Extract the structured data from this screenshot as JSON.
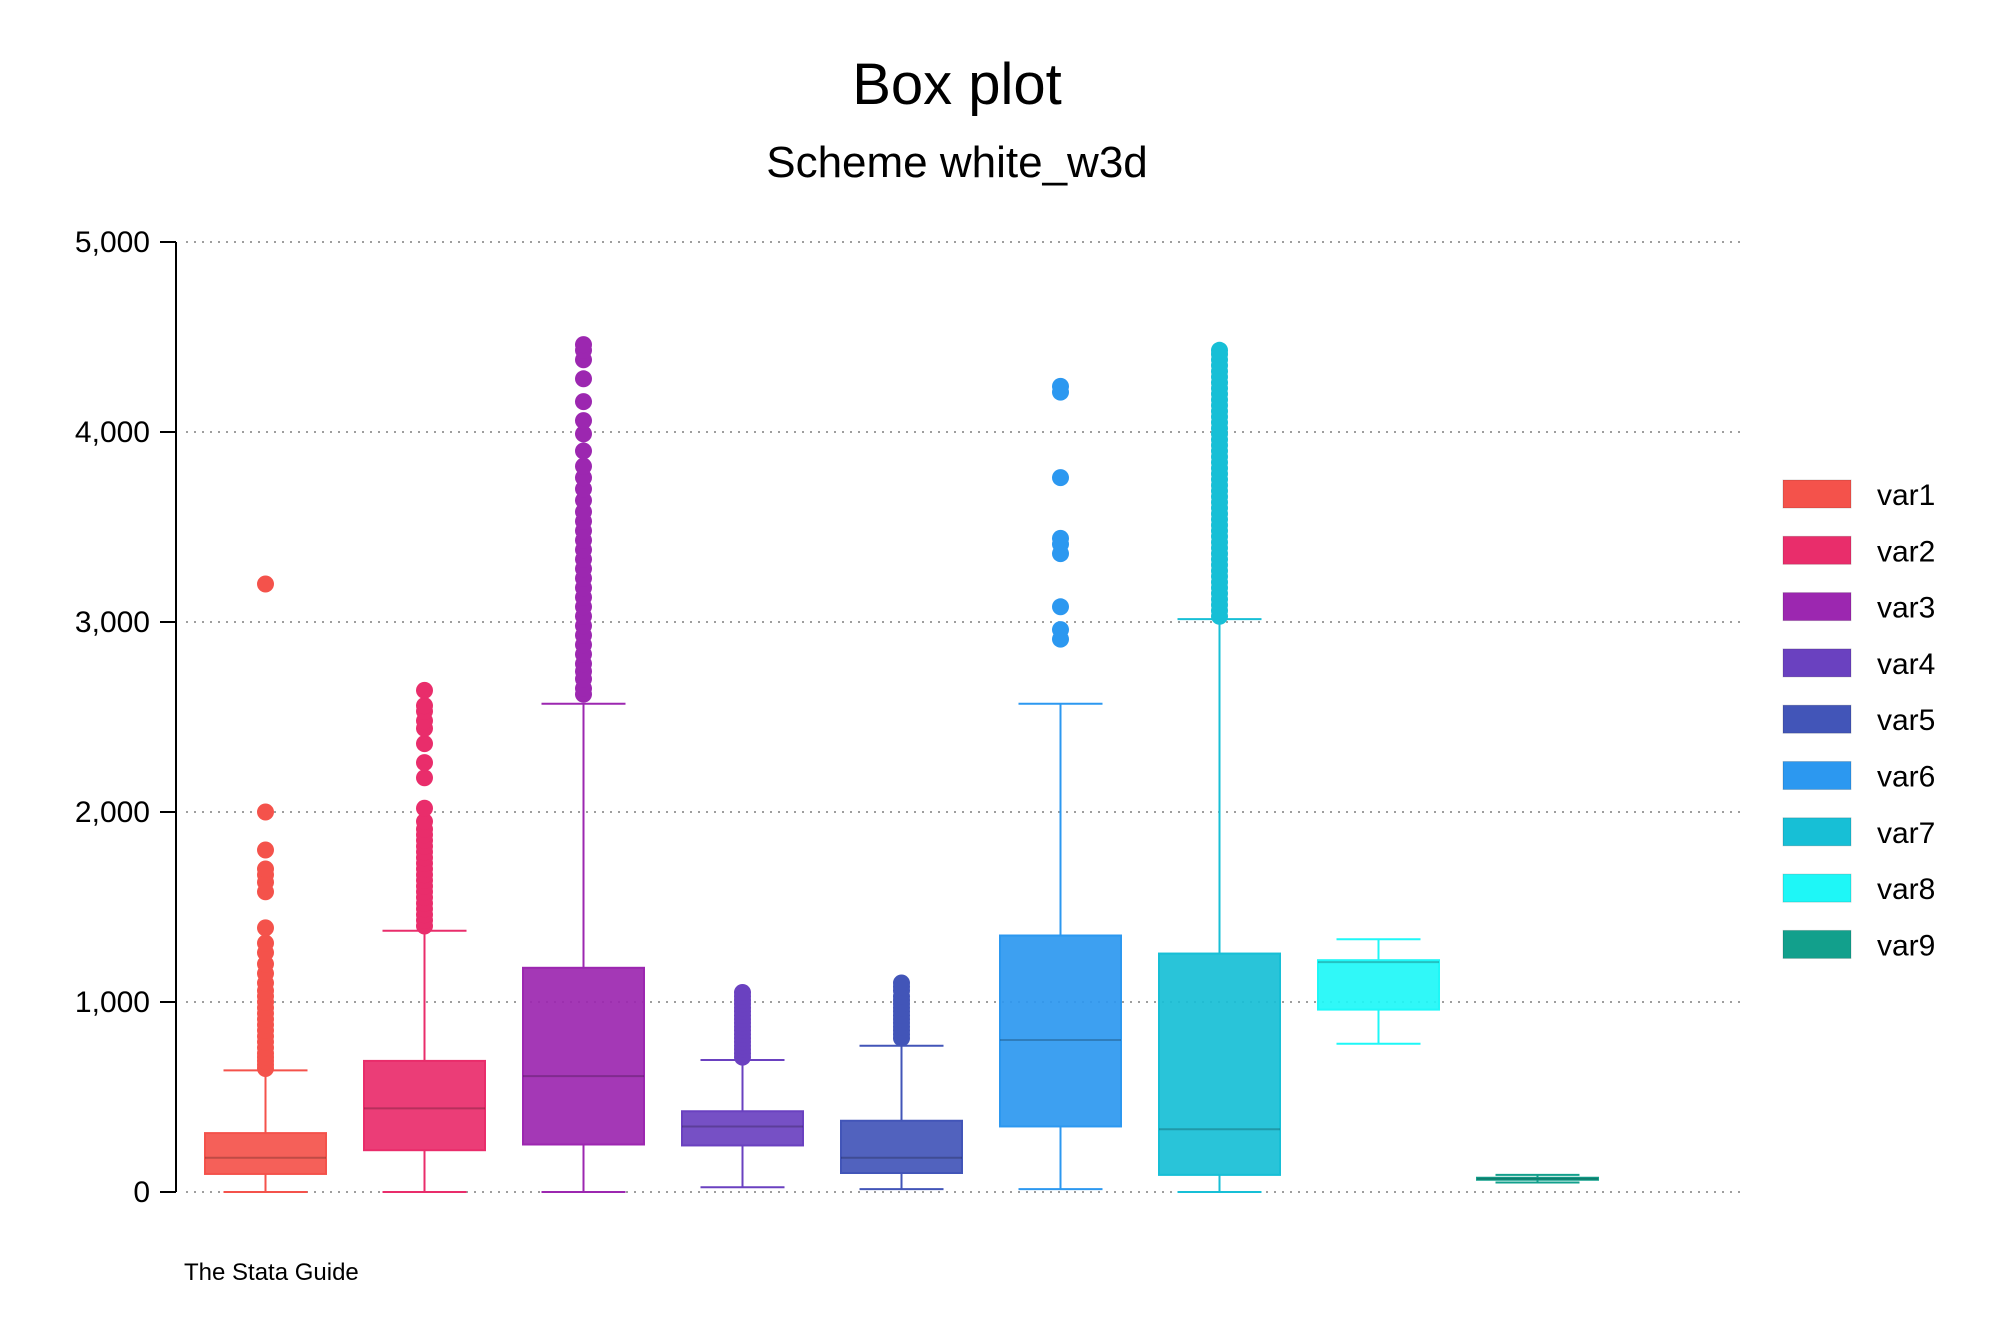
{
  "chart_data": {
    "type": "box",
    "title": "Box plot",
    "subtitle": "Scheme white_w3d",
    "note": "The Stata Guide",
    "xlabel": "",
    "ylabel": "",
    "ylim": [
      0,
      5000
    ],
    "yticks": [
      0,
      1000,
      2000,
      3000,
      4000,
      5000
    ],
    "ytick_labels": [
      "0",
      "1,000",
      "2,000",
      "3,000",
      "4,000",
      "5,000"
    ],
    "grid": true,
    "legend_position": "right",
    "series": [
      {
        "name": "var1",
        "color": "#f4524b",
        "whisker_low": 0,
        "q1": 95,
        "median": 180,
        "q3": 310,
        "whisker_high": 640,
        "outliers": [
          650,
          670,
          690,
          710,
          730,
          760,
          790,
          820,
          850,
          880,
          910,
          940,
          970,
          1000,
          1030,
          1060,
          1100,
          1150,
          1200,
          1260,
          1310,
          1390,
          1580,
          1630,
          1670,
          1700,
          1800,
          2000,
          3200
        ]
      },
      {
        "name": "var2",
        "color": "#e92d6b",
        "whisker_low": 0,
        "q1": 220,
        "median": 440,
        "q3": 690,
        "whisker_high": 1375,
        "outliers": [
          1400,
          1430,
          1460,
          1490,
          1520,
          1550,
          1580,
          1610,
          1640,
          1670,
          1700,
          1730,
          1760,
          1790,
          1820,
          1850,
          1880,
          1910,
          1950,
          2020,
          2180,
          2260,
          2360,
          2440,
          2480,
          2530,
          2560,
          2640
        ]
      },
      {
        "name": "var3",
        "color": "#9c27b0",
        "whisker_low": 0,
        "q1": 250,
        "median": 610,
        "q3": 1180,
        "whisker_high": 2570,
        "outliers": [
          2620,
          2650,
          2700,
          2740,
          2780,
          2830,
          2880,
          2930,
          2980,
          3030,
          3080,
          3130,
          3180,
          3230,
          3280,
          3330,
          3380,
          3430,
          3480,
          3530,
          3580,
          3640,
          3700,
          3760,
          3820,
          3900,
          3990,
          4060,
          4160,
          4280,
          4380,
          4430,
          4460
        ]
      },
      {
        "name": "var4",
        "color": "#6a41c0",
        "whisker_low": 25,
        "q1": 245,
        "median": 345,
        "q3": 425,
        "whisker_high": 695,
        "outliers": [
          710,
          730,
          750,
          770,
          790,
          810,
          830,
          850,
          870,
          890,
          910,
          930,
          950,
          970,
          990,
          1010,
          1030,
          1050
        ]
      },
      {
        "name": "var5",
        "color": "#4255b8",
        "whisker_low": 15,
        "q1": 100,
        "median": 180,
        "q3": 375,
        "whisker_high": 770,
        "outliers": [
          810,
          830,
          850,
          870,
          890,
          910,
          930,
          950,
          970,
          990,
          1010,
          1030,
          1060,
          1080,
          1100
        ]
      },
      {
        "name": "var6",
        "color": "#2c98f0",
        "whisker_low": 15,
        "q1": 345,
        "median": 800,
        "q3": 1350,
        "whisker_high": 2570,
        "outliers": [
          2910,
          2960,
          3080,
          3360,
          3410,
          3440,
          3760,
          4210,
          4240
        ]
      },
      {
        "name": "var7",
        "color": "#17bfd6",
        "whisker_low": 0,
        "q1": 90,
        "median": 330,
        "q3": 1255,
        "whisker_high": 3015,
        "outliers": [
          3030,
          3060,
          3090,
          3120,
          3150,
          3180,
          3210,
          3240,
          3270,
          3300,
          3330,
          3360,
          3390,
          3420,
          3450,
          3480,
          3510,
          3540,
          3570,
          3600,
          3630,
          3660,
          3690,
          3720,
          3750,
          3780,
          3810,
          3840,
          3870,
          3900,
          3930,
          3960,
          3990,
          4020,
          4050,
          4080,
          4110,
          4140,
          4170,
          4200,
          4230,
          4260,
          4290,
          4320,
          4350,
          4380,
          4410,
          4430
        ]
      },
      {
        "name": "var8",
        "color": "#1ef7f7",
        "whisker_low": 780,
        "q1": 960,
        "median": 1210,
        "q3": 1220,
        "whisker_high": 1330,
        "outliers": []
      },
      {
        "name": "var9",
        "color": "#12a08c",
        "whisker_low": 50,
        "q1": 65,
        "median": 70,
        "q3": 75,
        "whisker_high": 90,
        "outliers": []
      }
    ]
  }
}
